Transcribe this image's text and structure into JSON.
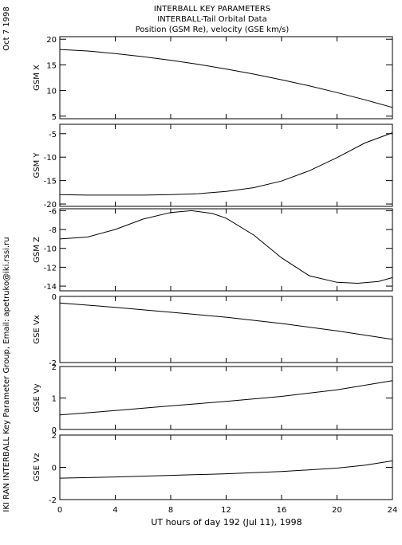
{
  "title_lines": [
    "INTERBALL KEY PARAMETERS",
    "INTERBALL-Tail Orbital Data",
    "Position (GSM Re), velocity (GSE km/s)"
  ],
  "side_date": "Oct  7 1998",
  "side_credit": "IKI RAN INTERBALL Key Parameter Group, Email: apetruko@iki.rssi.ru",
  "chart_data": {
    "type": "line",
    "xlabel": "UT hours of day 192 (Jul 11), 1998",
    "xlim": [
      0,
      24
    ],
    "xticks": [
      0,
      4,
      8,
      12,
      16,
      20,
      24
    ],
    "grid": false,
    "panels": [
      {
        "ylabel": "GSM X",
        "ylim": [
          4.5,
          20.5
        ],
        "yticks": [
          5,
          10,
          15,
          20
        ],
        "x": [
          0,
          2,
          4,
          6,
          8,
          10,
          12,
          14,
          16,
          18,
          20,
          22,
          24
        ],
        "y": [
          18.0,
          17.7,
          17.2,
          16.6,
          15.9,
          15.1,
          14.2,
          13.2,
          12.1,
          10.9,
          9.6,
          8.2,
          6.7
        ]
      },
      {
        "ylabel": "GSM Y",
        "ylim": [
          -20.5,
          -3
        ],
        "yticks": [
          -20,
          -15,
          -10,
          -5
        ],
        "x": [
          0,
          2,
          4,
          6,
          8,
          10,
          12,
          14,
          16,
          18,
          20,
          22,
          24
        ],
        "y": [
          -18.0,
          -18.1,
          -18.1,
          -18.1,
          -18.0,
          -17.8,
          -17.3,
          -16.5,
          -15.1,
          -12.9,
          -10.1,
          -7.0,
          -4.8
        ]
      },
      {
        "ylabel": "GSM Z",
        "ylim": [
          -14.5,
          -5.8
        ],
        "yticks": [
          -14,
          -12,
          -10,
          -8,
          -6
        ],
        "x": [
          0,
          2,
          4,
          6,
          8,
          9.5,
          11,
          12,
          14,
          16,
          18,
          20,
          21.5,
          23,
          24
        ],
        "y": [
          -9.0,
          -8.8,
          -8.0,
          -6.9,
          -6.2,
          -6.0,
          -6.3,
          -6.8,
          -8.6,
          -11.0,
          -12.9,
          -13.6,
          -13.7,
          -13.5,
          -13.1
        ]
      },
      {
        "ylabel": "GSE Vx",
        "ylim": [
          -2,
          0
        ],
        "yticks": [
          -2,
          0
        ],
        "x": [
          0,
          4,
          8,
          12,
          16,
          20,
          24
        ],
        "y": [
          -0.2,
          -0.33,
          -0.48,
          -0.63,
          -0.82,
          -1.04,
          -1.3
        ]
      },
      {
        "ylabel": "GSE Vy",
        "ylim": [
          0,
          2
        ],
        "yticks": [
          0,
          1,
          2
        ],
        "x": [
          0,
          4,
          8,
          12,
          16,
          20,
          24
        ],
        "y": [
          0.46,
          0.6,
          0.75,
          0.89,
          1.05,
          1.26,
          1.55
        ]
      },
      {
        "ylabel": "GSE Vz",
        "ylim": [
          -2,
          2
        ],
        "yticks": [
          -2,
          0,
          2
        ],
        "x": [
          0,
          4,
          8,
          12,
          16,
          20,
          22,
          24
        ],
        "y": [
          -0.67,
          -0.6,
          -0.5,
          -0.4,
          -0.26,
          -0.05,
          0.13,
          0.4
        ]
      }
    ]
  }
}
